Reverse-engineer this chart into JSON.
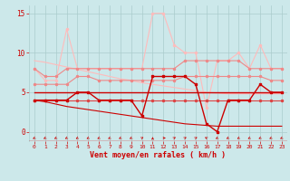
{
  "x": [
    0,
    1,
    2,
    3,
    4,
    5,
    6,
    7,
    8,
    9,
    10,
    11,
    12,
    13,
    14,
    15,
    16,
    17,
    18,
    19,
    20,
    21,
    22,
    23
  ],
  "line_rafales_top": [
    8,
    6.5,
    6.5,
    13,
    8,
    8,
    8,
    8,
    8,
    8,
    8,
    15,
    15,
    11,
    10,
    10,
    3,
    9,
    9,
    10,
    8,
    11,
    8,
    8
  ],
  "line_trend_top": [
    9,
    8.8,
    8.5,
    8.2,
    7.9,
    7.6,
    7.3,
    7.0,
    6.7,
    6.5,
    6.2,
    6.0,
    5.8,
    5.6,
    5.4,
    5.2,
    5.0,
    4.9,
    4.8,
    4.8,
    4.8,
    4.8,
    4.8,
    4.8
  ],
  "line_moy_upper": [
    8,
    7,
    7,
    8,
    8,
    8,
    8,
    8,
    8,
    8,
    8,
    8,
    8,
    8,
    9,
    9,
    9,
    9,
    9,
    9,
    8,
    8,
    8,
    8
  ],
  "line_moy_lower": [
    6,
    6,
    6,
    6,
    7,
    7,
    6.5,
    6.5,
    6.5,
    6.5,
    6.5,
    6.5,
    6.5,
    6.5,
    7,
    7,
    7,
    7,
    7,
    7,
    7,
    7,
    6.5,
    6.5
  ],
  "line_flat5": [
    5,
    5,
    5,
    5,
    5,
    5,
    5,
    5,
    5,
    5,
    5,
    5,
    5,
    5,
    5,
    5,
    5,
    5,
    5,
    5,
    5,
    5,
    5,
    5
  ],
  "line_flat4": [
    4,
    4,
    4,
    4,
    4,
    4,
    4,
    4,
    4,
    4,
    4,
    4,
    4,
    4,
    4,
    4,
    4,
    4,
    4,
    4,
    4,
    4,
    4,
    4
  ],
  "line_trend_low": [
    4,
    3.8,
    3.5,
    3.2,
    3.0,
    2.8,
    2.6,
    2.4,
    2.2,
    2.0,
    1.8,
    1.6,
    1.4,
    1.2,
    1.0,
    0.9,
    0.8,
    0.7,
    0.7,
    0.7,
    0.7,
    0.7,
    0.7,
    0.7
  ],
  "line_wind": [
    4,
    4,
    4,
    4,
    5,
    5,
    4,
    4,
    4,
    4,
    2,
    7,
    7,
    7,
    7,
    6,
    1,
    0,
    4,
    4,
    4,
    6,
    5,
    5
  ],
  "bg_color": "#cce8ea",
  "grid_color": "#aacccc",
  "dark_red": "#cc0000",
  "mid_red": "#dd4444",
  "light_red": "#ee8888",
  "very_light_red": "#ffbbbb",
  "xlabel": "Vent moyen/en rafales ( km/h )",
  "ylim": [
    -1.2,
    16
  ],
  "xlim": [
    -0.5,
    23.5
  ],
  "yticks": [
    0,
    5,
    10,
    15
  ],
  "xticks": [
    0,
    1,
    2,
    3,
    4,
    5,
    6,
    7,
    8,
    9,
    10,
    11,
    12,
    13,
    14,
    15,
    16,
    17,
    18,
    19,
    20,
    21,
    22,
    23
  ],
  "arrow_angles": [
    225,
    225,
    225,
    225,
    225,
    225,
    225,
    225,
    225,
    225,
    45,
    90,
    0,
    45,
    45,
    45,
    135,
    225,
    225,
    225,
    225,
    225,
    225,
    225
  ]
}
